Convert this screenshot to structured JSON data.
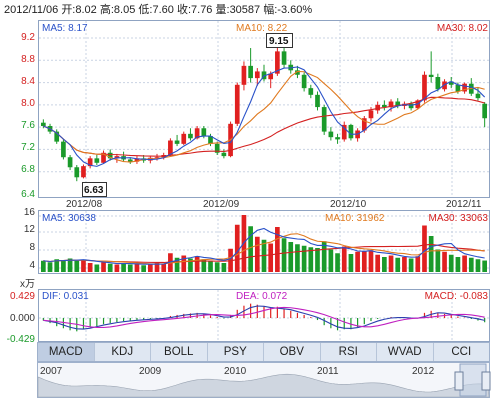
{
  "header": {
    "date": "2012/11/06",
    "open_label": "开:",
    "open": "8.02",
    "high_label": "高:",
    "high": "8.05",
    "low_label": "低:",
    "low": "7.60",
    "close_label": "收:",
    "close": "7.76",
    "volume_label": "量:",
    "volume": "30587",
    "change_label": "幅:",
    "change": "-3.60%"
  },
  "price_panel": {
    "ma5": "MA5: 8.17",
    "ma10": "MA10: 8.22",
    "ma30": "MA30: 8.02",
    "y_ticks": [
      "9.2",
      "8.8",
      "8.4",
      "8.0",
      "7.6",
      "7.2",
      "6.8",
      "6.4"
    ],
    "high_marker": "9.15",
    "low_marker": "6.63",
    "x_labels": [
      "2012/08",
      "2012/09",
      "2012/10",
      "2012/11"
    ]
  },
  "volume_panel": {
    "ma5": "MA5: 30638",
    "ma30": "MA30: 33063",
    "ma10": "MA10: 31962",
    "y_ticks": [
      "16",
      "12",
      "8",
      "4"
    ],
    "unit": "x万"
  },
  "macd_panel": {
    "dif": "DIF: 0.031",
    "dea": "DEA: 0.072",
    "macd": "MACD: -0.083",
    "y_ticks": [
      "0.429",
      "0.000",
      "-0.429"
    ]
  },
  "tabs": [
    "MACD",
    "KDJ",
    "BOLL",
    "PSY",
    "OBV",
    "RSI",
    "WVAD",
    "CCI"
  ],
  "timeline": {
    "years": [
      "2007",
      "2009",
      "2010",
      "2011",
      "2012"
    ]
  },
  "colors": {
    "up": "#e02020",
    "down": "#1a9a2a",
    "ma5": "#2a52c9",
    "ma10": "#e07a20",
    "ma30": "#d42020",
    "grid": "#c9d3e3",
    "panel_border": "#8fa3c2"
  },
  "chart_data": {
    "type": "candlestick",
    "title": "",
    "x_ticks": [
      "2012/08",
      "2012/09",
      "2012/10",
      "2012/11"
    ],
    "ylim": [
      6.4,
      9.2
    ],
    "ohlc": [
      [
        7.68,
        7.74,
        7.58,
        7.62
      ],
      [
        7.62,
        7.66,
        7.48,
        7.52
      ],
      [
        7.52,
        7.56,
        7.3,
        7.34
      ],
      [
        7.34,
        7.38,
        7.02,
        7.06
      ],
      [
        7.06,
        7.1,
        6.83,
        6.88
      ],
      [
        6.88,
        6.92,
        6.63,
        6.7
      ],
      [
        6.7,
        6.93,
        6.68,
        6.9
      ],
      [
        6.9,
        7.08,
        6.86,
        7.04
      ],
      [
        7.04,
        7.1,
        6.92,
        6.96
      ],
      [
        6.96,
        7.18,
        6.94,
        7.14
      ],
      [
        7.14,
        7.2,
        7.0,
        7.04
      ],
      [
        7.04,
        7.12,
        6.96,
        7.08
      ],
      [
        7.08,
        7.16,
        6.98,
        7.02
      ],
      [
        7.02,
        7.06,
        6.94,
        6.98
      ],
      [
        6.98,
        7.08,
        6.94,
        7.04
      ],
      [
        7.04,
        7.1,
        6.96,
        7.0
      ],
      [
        7.0,
        7.08,
        6.95,
        7.05
      ],
      [
        7.05,
        7.12,
        7.0,
        7.06
      ],
      [
        7.06,
        7.14,
        7.02,
        7.1
      ],
      [
        7.1,
        7.4,
        7.08,
        7.36
      ],
      [
        7.36,
        7.46,
        7.26,
        7.3
      ],
      [
        7.3,
        7.52,
        7.28,
        7.48
      ],
      [
        7.48,
        7.58,
        7.36,
        7.4
      ],
      [
        7.4,
        7.62,
        7.38,
        7.58
      ],
      [
        7.58,
        7.62,
        7.4,
        7.44
      ],
      [
        7.44,
        7.48,
        7.26,
        7.3
      ],
      [
        7.3,
        7.34,
        7.1,
        7.14
      ],
      [
        7.14,
        7.2,
        7.04,
        7.08
      ],
      [
        7.08,
        7.7,
        7.06,
        7.66
      ],
      [
        7.66,
        8.4,
        7.62,
        8.36
      ],
      [
        8.36,
        8.78,
        8.26,
        8.7
      ],
      [
        8.7,
        9.02,
        8.4,
        8.48
      ],
      [
        8.48,
        8.66,
        8.34,
        8.6
      ],
      [
        8.6,
        8.72,
        8.42,
        8.46
      ],
      [
        8.46,
        8.6,
        8.3,
        8.56
      ],
      [
        8.56,
        9.15,
        8.52,
        8.96
      ],
      [
        8.96,
        9.02,
        8.66,
        8.72
      ],
      [
        8.72,
        8.8,
        8.56,
        8.62
      ],
      [
        8.62,
        8.7,
        8.48,
        8.54
      ],
      [
        8.54,
        8.58,
        8.24,
        8.3
      ],
      [
        8.3,
        8.36,
        8.12,
        8.18
      ],
      [
        8.18,
        8.24,
        7.9,
        7.96
      ],
      [
        7.96,
        8.0,
        7.46,
        7.52
      ],
      [
        7.52,
        7.6,
        7.36,
        7.42
      ],
      [
        7.42,
        7.48,
        7.3,
        7.38
      ],
      [
        7.38,
        7.7,
        7.34,
        7.64
      ],
      [
        7.64,
        7.66,
        7.36,
        7.4
      ],
      [
        7.4,
        7.58,
        7.34,
        7.54
      ],
      [
        7.54,
        7.8,
        7.5,
        7.76
      ],
      [
        7.76,
        7.96,
        7.7,
        7.9
      ],
      [
        7.9,
        8.06,
        7.84,
        8.0
      ],
      [
        8.0,
        8.08,
        7.9,
        7.96
      ],
      [
        7.96,
        8.1,
        7.88,
        8.06
      ],
      [
        8.06,
        8.12,
        7.94,
        7.98
      ],
      [
        7.98,
        8.06,
        7.92,
        8.02
      ],
      [
        8.02,
        8.06,
        7.9,
        7.94
      ],
      [
        7.94,
        8.1,
        7.92,
        8.08
      ],
      [
        8.08,
        8.6,
        8.04,
        8.54
      ],
      [
        8.54,
        8.96,
        8.4,
        8.5
      ],
      [
        8.5,
        8.56,
        8.24,
        8.28
      ],
      [
        8.28,
        8.46,
        8.24,
        8.42
      ],
      [
        8.42,
        8.5,
        8.3,
        8.36
      ],
      [
        8.36,
        8.4,
        8.2,
        8.24
      ],
      [
        8.24,
        8.4,
        8.2,
        8.38
      ],
      [
        8.38,
        8.48,
        8.16,
        8.2
      ],
      [
        8.2,
        8.32,
        8.08,
        8.12
      ],
      [
        8.02,
        8.05,
        7.6,
        7.76
      ]
    ],
    "volume": [
      3.0,
      2.6,
      3.4,
      3.2,
      3.6,
      3.0,
      3.2,
      2.4,
      2.0,
      2.6,
      2.2,
      2.0,
      2.4,
      2.0,
      2.2,
      1.8,
      2.0,
      2.4,
      2.2,
      5.0,
      3.8,
      4.4,
      3.6,
      4.2,
      3.4,
      3.0,
      2.6,
      2.4,
      6.2,
      12.6,
      15.2,
      12.2,
      9.4,
      8.6,
      7.6,
      12.0,
      9.0,
      8.0,
      7.4,
      7.0,
      6.6,
      6.4,
      8.2,
      6.0,
      5.0,
      6.8,
      4.8,
      5.4,
      5.6,
      5.8,
      4.6,
      4.0,
      4.4,
      3.8,
      4.0,
      3.6,
      4.2,
      12.4,
      9.6,
      6.0,
      5.4,
      4.6,
      4.0,
      4.4,
      3.8,
      3.4,
      3.06
    ],
    "macd": [
      -0.05,
      -0.1,
      -0.16,
      -0.2,
      -0.24,
      -0.26,
      -0.22,
      -0.18,
      -0.16,
      -0.12,
      -0.1,
      -0.08,
      -0.06,
      -0.05,
      -0.04,
      -0.03,
      -0.02,
      -0.01,
      0.0,
      0.04,
      0.06,
      0.08,
      0.09,
      0.1,
      0.08,
      0.05,
      0.02,
      -0.01,
      0.06,
      0.16,
      0.24,
      0.28,
      0.26,
      0.22,
      0.2,
      0.22,
      0.18,
      0.14,
      0.1,
      0.06,
      0.02,
      -0.04,
      -0.14,
      -0.2,
      -0.24,
      -0.22,
      -0.22,
      -0.18,
      -0.12,
      -0.06,
      -0.02,
      0.0,
      0.02,
      0.01,
      0.0,
      -0.01,
      0.0,
      0.1,
      0.14,
      0.1,
      0.08,
      0.06,
      0.03,
      0.01,
      -0.02,
      -0.05,
      -0.083
    ]
  }
}
